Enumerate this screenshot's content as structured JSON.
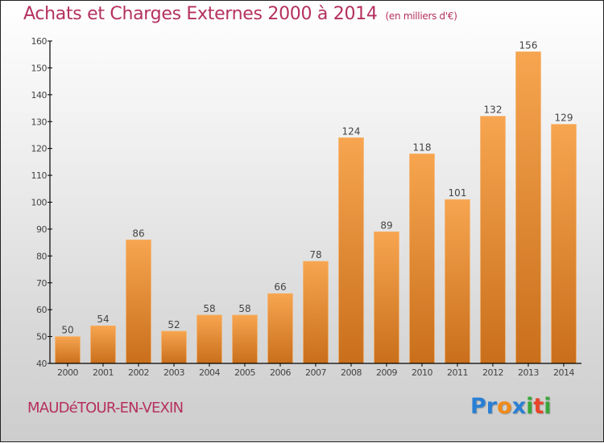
{
  "chart_data": {
    "type": "bar",
    "title": "Achats et Charges Externes 2000 à 2014",
    "subtitle": "(en milliers d'€)",
    "xlabel": "",
    "ylabel": "",
    "categories": [
      "2000",
      "2001",
      "2002",
      "2003",
      "2004",
      "2005",
      "2006",
      "2007",
      "2008",
      "2009",
      "2010",
      "2011",
      "2012",
      "2013",
      "2014"
    ],
    "values": [
      50,
      54,
      86,
      52,
      58,
      58,
      66,
      78,
      124,
      89,
      118,
      101,
      132,
      156,
      129
    ],
    "data_labels": [
      "50",
      "54",
      "86",
      "52",
      "58",
      "58",
      "66",
      "78",
      "124",
      "89",
      "118",
      "101",
      "132",
      "156",
      "129"
    ],
    "ylim": [
      40,
      160
    ],
    "yticks": [
      40,
      50,
      60,
      70,
      80,
      90,
      100,
      110,
      120,
      130,
      140,
      150,
      160
    ],
    "grid": false,
    "legend": "none",
    "colors": {
      "bar_top": "#f7a550",
      "bar_bottom": "#c96f1c",
      "title": "#b5305f"
    }
  },
  "footer": {
    "city": "MAUDéTOUR-EN-VEXIN",
    "logo_letters": [
      {
        "char": "P",
        "color": "#2a7fd4"
      },
      {
        "char": "r",
        "color": "#2a7fd4"
      },
      {
        "char": "o",
        "color": "#f08a1a"
      },
      {
        "char": "x",
        "color": "#2a7fd4"
      },
      {
        "char": "i",
        "color": "#3aa63a"
      },
      {
        "char": "t",
        "color": "#e8452a"
      },
      {
        "char": "i",
        "color": "#3aa63a"
      }
    ]
  }
}
